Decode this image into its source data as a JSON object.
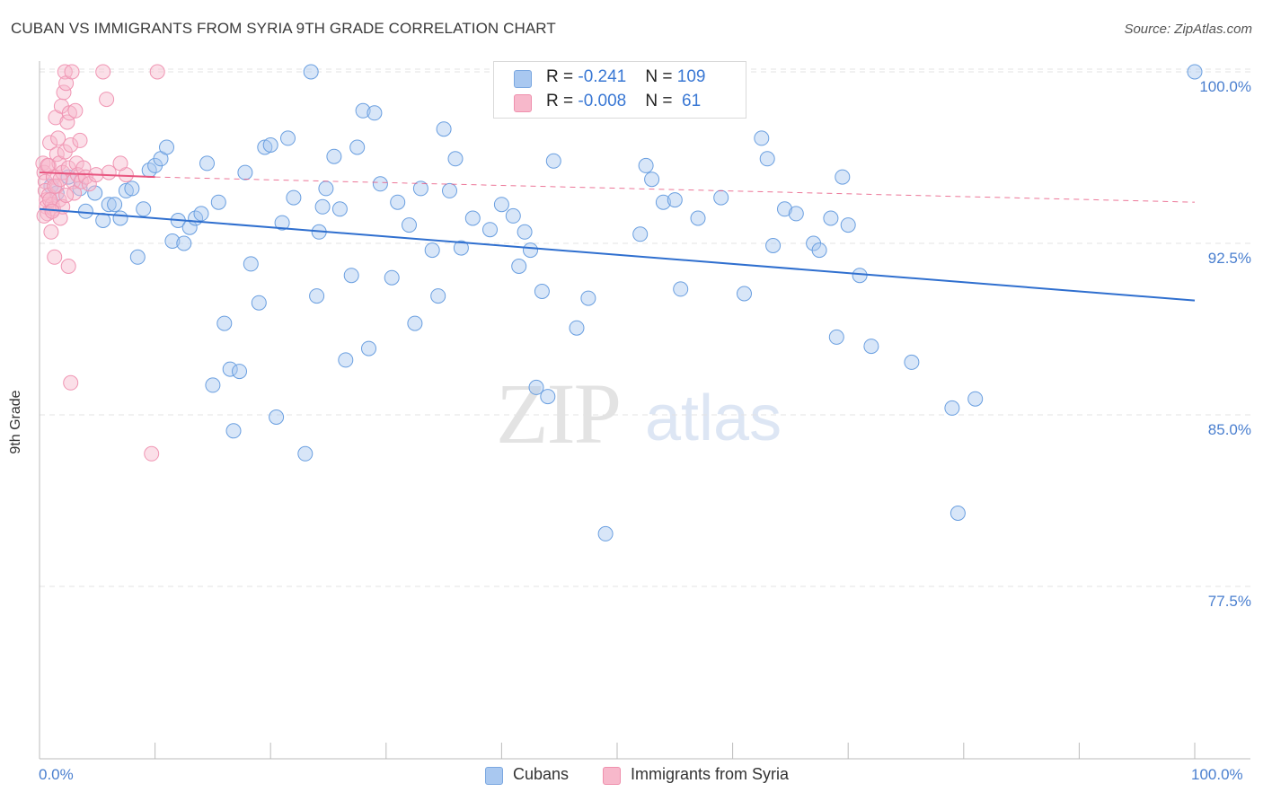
{
  "title": "CUBAN VS IMMIGRANTS FROM SYRIA 9TH GRADE CORRELATION CHART",
  "source": "Source: ZipAtlas.com",
  "watermark": {
    "zip": "ZIP",
    "atlas": "atlas"
  },
  "legend": {
    "rows": [
      {
        "r_label": "R = ",
        "r_value": "-0.241",
        "n_label": "N = ",
        "n_value": "109",
        "color": "#a9c8f0"
      },
      {
        "r_label": "R = ",
        "r_value": "-0.008",
        "n_label": "N = ",
        "n_value": " 61",
        "color": "#f7b8cb"
      }
    ]
  },
  "bottom_legend": [
    {
      "label": "Cubans",
      "color": "#a9c8f0"
    },
    {
      "label": "Immigrants from Syria",
      "color": "#f7b8cb"
    }
  ],
  "chart_data": {
    "type": "scatter",
    "title": "CUBAN VS IMMIGRANTS FROM SYRIA 9TH GRADE CORRELATION CHART",
    "ylabel": "9th Grade",
    "xlabel": "",
    "xlim": [
      0,
      100
    ],
    "ylim": [
      70.0,
      100.8
    ],
    "x_tick_labels": [
      "0.0%",
      "100.0%"
    ],
    "y_ticks": [
      {
        "value": 100.0,
        "label": "100.0%"
      },
      {
        "value": 92.5,
        "label": "92.5%"
      },
      {
        "value": 85.0,
        "label": "85.0%"
      },
      {
        "value": 77.5,
        "label": "77.5%"
      }
    ],
    "grid": true,
    "series": [
      {
        "name": "Cubans",
        "color": "#6a9fe0",
        "trend": {
          "x": [
            0,
            100
          ],
          "y": [
            94.0,
            90.0
          ],
          "color": "#2f6fcf"
        },
        "points": [
          [
            1.0,
            95.0
          ],
          [
            1.5,
            94.7
          ],
          [
            2.5,
            95.4
          ],
          [
            3.5,
            94.9
          ],
          [
            4.0,
            93.9
          ],
          [
            4.8,
            94.7
          ],
          [
            5.5,
            93.5
          ],
          [
            6.0,
            94.2
          ],
          [
            6.5,
            94.2
          ],
          [
            7.0,
            93.6
          ],
          [
            7.5,
            94.8
          ],
          [
            8.0,
            94.9
          ],
          [
            8.5,
            91.9
          ],
          [
            9.0,
            94.0
          ],
          [
            9.5,
            95.7
          ],
          [
            10.0,
            95.9
          ],
          [
            10.5,
            96.2
          ],
          [
            11.0,
            96.7
          ],
          [
            11.5,
            92.6
          ],
          [
            12.0,
            93.5
          ],
          [
            12.5,
            92.5
          ],
          [
            13.0,
            93.2
          ],
          [
            13.5,
            93.6
          ],
          [
            14.0,
            93.8
          ],
          [
            14.5,
            96.0
          ],
          [
            15.0,
            86.3
          ],
          [
            15.5,
            94.3
          ],
          [
            16.0,
            89.0
          ],
          [
            16.5,
            87.0
          ],
          [
            16.8,
            84.3
          ],
          [
            17.3,
            86.9
          ],
          [
            17.8,
            95.6
          ],
          [
            18.3,
            91.6
          ],
          [
            19.0,
            89.9
          ],
          [
            19.5,
            96.7
          ],
          [
            20.0,
            96.8
          ],
          [
            20.5,
            84.9
          ],
          [
            21.0,
            93.4
          ],
          [
            21.5,
            97.1
          ],
          [
            22.0,
            94.5
          ],
          [
            23.0,
            83.3
          ],
          [
            23.5,
            100.0
          ],
          [
            24.0,
            90.2
          ],
          [
            24.5,
            94.1
          ],
          [
            24.8,
            94.9
          ],
          [
            25.5,
            96.3
          ],
          [
            26.0,
            94.0
          ],
          [
            26.5,
            87.4
          ],
          [
            27.0,
            91.1
          ],
          [
            27.5,
            96.7
          ],
          [
            28.0,
            98.3
          ],
          [
            28.5,
            87.9
          ],
          [
            29.0,
            98.2
          ],
          [
            29.5,
            95.1
          ],
          [
            30.5,
            91.0
          ],
          [
            31.0,
            94.3
          ],
          [
            32.0,
            93.3
          ],
          [
            32.5,
            89.0
          ],
          [
            33.0,
            94.9
          ],
          [
            34.0,
            92.2
          ],
          [
            34.5,
            90.2
          ],
          [
            35.0,
            97.5
          ],
          [
            35.5,
            94.8
          ],
          [
            36.0,
            96.2
          ],
          [
            36.5,
            92.3
          ],
          [
            37.5,
            93.6
          ],
          [
            39.0,
            93.1
          ],
          [
            40.0,
            94.2
          ],
          [
            41.0,
            93.7
          ],
          [
            41.5,
            91.5
          ],
          [
            42.0,
            93.0
          ],
          [
            42.5,
            92.2
          ],
          [
            43.0,
            86.2
          ],
          [
            43.5,
            90.4
          ],
          [
            44.0,
            85.8
          ],
          [
            44.5,
            96.1
          ],
          [
            46.5,
            88.8
          ],
          [
            47.5,
            90.1
          ],
          [
            49.0,
            79.8
          ],
          [
            52.0,
            92.9
          ],
          [
            52.5,
            95.9
          ],
          [
            53.0,
            95.3
          ],
          [
            54.0,
            94.3
          ],
          [
            55.0,
            94.4
          ],
          [
            55.5,
            90.5
          ],
          [
            57.0,
            93.6
          ],
          [
            59.0,
            94.5
          ],
          [
            61.0,
            90.3
          ],
          [
            62.5,
            97.1
          ],
          [
            63.0,
            96.2
          ],
          [
            63.5,
            92.4
          ],
          [
            64.5,
            94.0
          ],
          [
            65.5,
            93.8
          ],
          [
            67.0,
            92.5
          ],
          [
            67.5,
            92.2
          ],
          [
            68.5,
            93.6
          ],
          [
            69.0,
            88.4
          ],
          [
            69.5,
            95.4
          ],
          [
            70.0,
            93.3
          ],
          [
            71.0,
            91.1
          ],
          [
            72.0,
            88.0
          ],
          [
            75.5,
            87.3
          ],
          [
            79.0,
            85.3
          ],
          [
            79.5,
            80.7
          ],
          [
            81.0,
            85.7
          ],
          [
            100.0,
            100.0
          ],
          [
            24.2,
            93.0
          ]
        ]
      },
      {
        "name": "Immigrants from Syria",
        "color": "#f095b3",
        "trend": {
          "x": [
            0,
            10
          ],
          "y": [
            95.6,
            95.4
          ],
          "color": "#e8557f",
          "dashed_x": [
            10,
            100
          ],
          "dashed_y": [
            95.4,
            94.3
          ]
        },
        "points": [
          [
            0.3,
            96.0
          ],
          [
            0.4,
            95.6
          ],
          [
            0.5,
            95.2
          ],
          [
            0.5,
            94.8
          ],
          [
            0.6,
            94.4
          ],
          [
            0.6,
            94.1
          ],
          [
            0.7,
            93.8
          ],
          [
            0.8,
            95.9
          ],
          [
            0.8,
            94.6
          ],
          [
            0.9,
            96.9
          ],
          [
            1.0,
            93.0
          ],
          [
            1.1,
            94.2
          ],
          [
            1.2,
            95.4
          ],
          [
            1.2,
            94.0
          ],
          [
            1.3,
            91.9
          ],
          [
            1.4,
            98.0
          ],
          [
            1.5,
            96.4
          ],
          [
            1.5,
            95.0
          ],
          [
            1.6,
            97.1
          ],
          [
            1.7,
            96.0
          ],
          [
            1.7,
            94.4
          ],
          [
            1.8,
            93.6
          ],
          [
            1.9,
            98.5
          ],
          [
            2.0,
            95.6
          ],
          [
            2.0,
            94.1
          ],
          [
            2.1,
            99.1
          ],
          [
            2.2,
            96.5
          ],
          [
            2.2,
            100.0
          ],
          [
            2.3,
            99.5
          ],
          [
            2.4,
            97.8
          ],
          [
            2.5,
            95.8
          ],
          [
            2.5,
            91.5
          ],
          [
            2.6,
            98.2
          ],
          [
            2.7,
            96.8
          ],
          [
            2.7,
            86.4
          ],
          [
            2.8,
            100.0
          ],
          [
            2.9,
            95.2
          ],
          [
            3.0,
            94.7
          ],
          [
            3.1,
            98.3
          ],
          [
            3.2,
            96.0
          ],
          [
            3.3,
            95.5
          ],
          [
            3.5,
            97.0
          ],
          [
            3.6,
            95.2
          ],
          [
            3.8,
            95.8
          ],
          [
            4.0,
            95.4
          ],
          [
            4.3,
            95.1
          ],
          [
            4.9,
            95.5
          ],
          [
            5.5,
            100.0
          ],
          [
            6.0,
            95.6
          ],
          [
            7.5,
            95.5
          ],
          [
            9.7,
            83.3
          ],
          [
            10.2,
            100.0
          ],
          [
            5.8,
            98.8
          ],
          [
            7.0,
            96.0
          ],
          [
            0.4,
            93.7
          ],
          [
            0.9,
            94.4
          ],
          [
            1.3,
            95.0
          ],
          [
            1.8,
            95.3
          ],
          [
            2.3,
            94.6
          ],
          [
            0.7,
            95.9
          ],
          [
            1.1,
            93.9
          ]
        ]
      }
    ]
  }
}
